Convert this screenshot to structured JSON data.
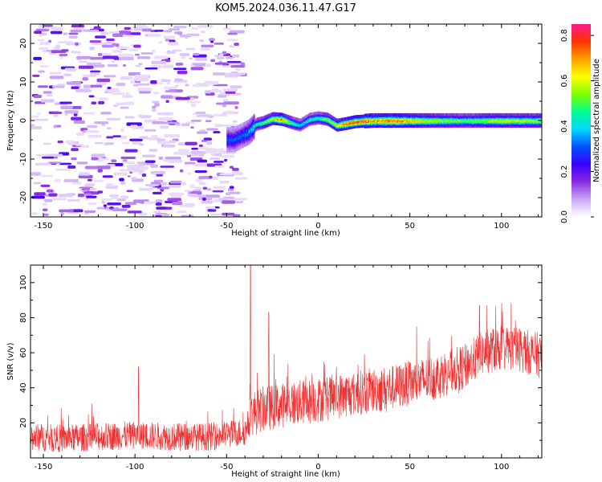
{
  "title": "KOM5.2024.036.11.47.G17",
  "chart_data": [
    {
      "type": "heatmap",
      "xlabel": "Height of straight line (km)",
      "ylabel": "Frequency (Hz)",
      "xlim": [
        -157,
        122
      ],
      "ylim": [
        -25,
        25
      ],
      "x_ticks": [
        -150,
        -100,
        -50,
        0,
        50,
        100
      ],
      "y_ticks": [
        -20,
        -10,
        0,
        10,
        20
      ],
      "colorbar": {
        "label": "Normalized spectral amplitude",
        "range": [
          0,
          0.85
        ],
        "ticks": [
          0.0,
          0.2,
          0.4,
          0.6,
          0.8
        ],
        "colormap": [
          "#ffffff",
          "#c9a8f5",
          "#8a2be2",
          "#3a00ff",
          "#0050ff",
          "#00d8ff",
          "#00ff90",
          "#7cff00",
          "#ffff00",
          "#ffa000",
          "#ff3000",
          "#ff1a8c"
        ]
      },
      "noise_region_x": [
        -157,
        -45
      ],
      "noise_amplitude_max": 0.2,
      "trace": {
        "x": [
          -50,
          -46,
          -42,
          -38,
          -34,
          -30,
          -25,
          -20,
          -15,
          -10,
          -5,
          0,
          5,
          10,
          15,
          20,
          30,
          40,
          60,
          80,
          100,
          122
        ],
        "freq": [
          -5,
          -5,
          -4,
          -3,
          -1,
          -0.5,
          0.5,
          0.3,
          -0.5,
          -1.2,
          0.3,
          0.7,
          0.3,
          -1.2,
          -0.8,
          -0.3,
          0,
          0,
          0,
          0,
          0,
          0
        ],
        "amplitude": [
          0.3,
          0.3,
          0.3,
          0.35,
          0.45,
          0.5,
          0.6,
          0.75,
          0.5,
          0.4,
          0.45,
          0.45,
          0.55,
          0.6,
          0.75,
          0.8,
          0.7,
          0.75,
          0.6,
          0.5,
          0.6,
          0.55
        ]
      }
    },
    {
      "type": "line",
      "xlabel": "Height of straight line (km)",
      "ylabel": "SNR (v/v)",
      "xlim": [
        -157,
        122
      ],
      "ylim": [
        0,
        110
      ],
      "x_ticks": [
        -150,
        -100,
        -50,
        0,
        50,
        100
      ],
      "y_ticks": [
        20,
        40,
        60,
        80,
        100
      ],
      "color": "#ef3030",
      "mean_curve": {
        "x": [
          -157,
          -140,
          -120,
          -100,
          -80,
          -60,
          -45,
          -40,
          -36,
          -30,
          -20,
          0,
          20,
          40,
          60,
          80,
          90,
          100,
          110,
          122
        ],
        "y": [
          12,
          11,
          12,
          13,
          12,
          12,
          14,
          15,
          25,
          28,
          30,
          33,
          37,
          40,
          45,
          52,
          60,
          63,
          62,
          58
        ]
      },
      "spikes": [
        {
          "x": -98,
          "y": 52
        },
        {
          "x": -37,
          "y": 110
        },
        {
          "x": -27,
          "y": 83
        },
        {
          "x": 88,
          "y": 87
        }
      ]
    }
  ]
}
